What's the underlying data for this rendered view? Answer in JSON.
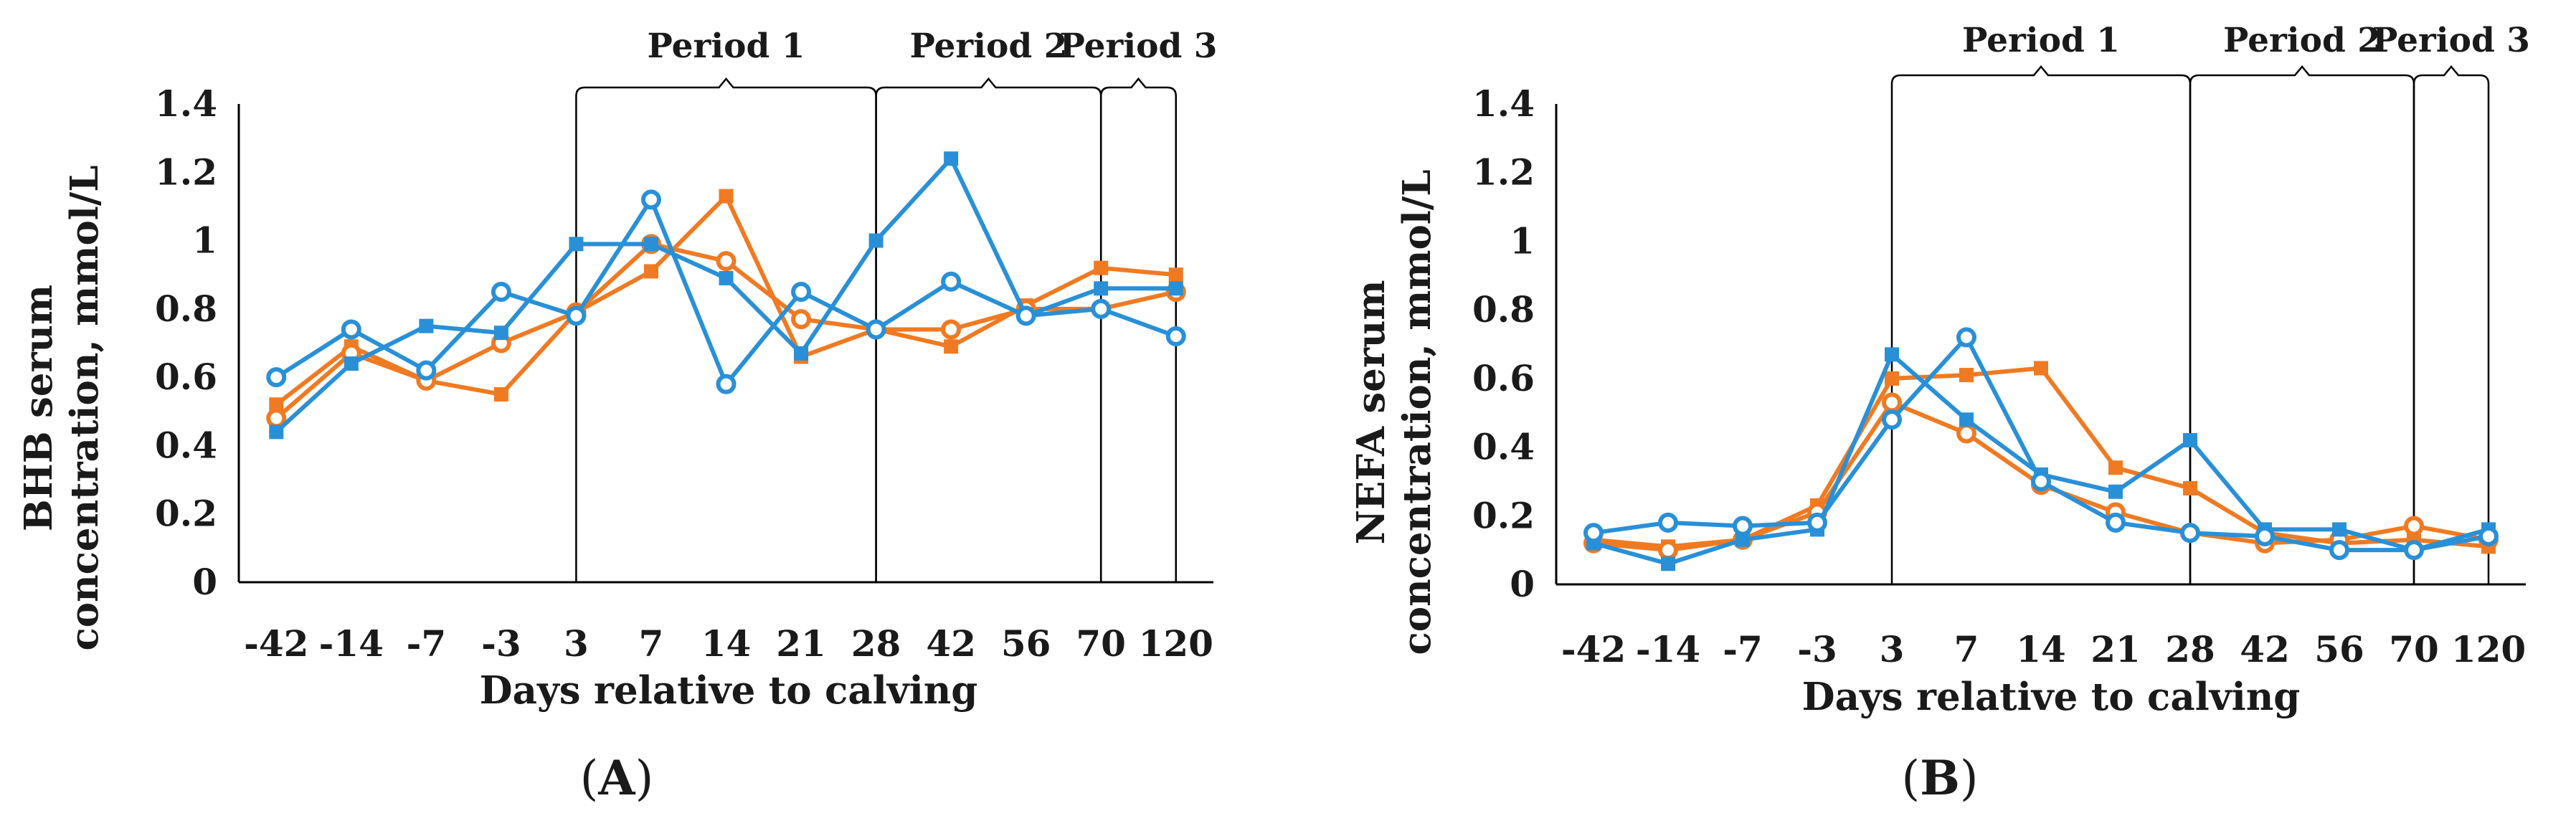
{
  "colors": {
    "orange": "#F07A22",
    "blue": "#2990D7",
    "axis": "#000000"
  },
  "chart_data": [
    {
      "id": "A",
      "type": "line",
      "panel_label": "A",
      "xlabel": "Days relative to calving",
      "ylabel_line1": "BHB serum",
      "ylabel_line2": "concentration, mmol/L",
      "categories": [
        "-42",
        "-14",
        "-7",
        "-3",
        "3",
        "7",
        "14",
        "21",
        "28",
        "42",
        "56",
        "70",
        "120"
      ],
      "ylim": [
        0,
        1.4
      ],
      "yticks": [
        "0",
        "0.2",
        "0.4",
        "0.6",
        "0.8",
        "1",
        "1.2",
        "1.4"
      ],
      "periods": [
        {
          "label": "Period 1",
          "from": "3",
          "to": "28"
        },
        {
          "label": "Period 2",
          "from": "28",
          "to": "70"
        },
        {
          "label": "Period 3",
          "from": "70",
          "to": "120"
        }
      ],
      "series": [
        {
          "name": "orange squares",
          "color": "orange",
          "marker": "square",
          "values": [
            0.52,
            0.69,
            0.59,
            0.55,
            0.79,
            0.91,
            1.13,
            0.66,
            0.74,
            0.69,
            0.81,
            0.92,
            0.9
          ]
        },
        {
          "name": "orange circles",
          "color": "orange",
          "marker": "circle",
          "values": [
            0.48,
            0.67,
            0.59,
            0.7,
            0.79,
            0.99,
            0.94,
            0.77,
            0.74,
            0.74,
            0.8,
            0.8,
            0.85
          ]
        },
        {
          "name": "blue squares",
          "color": "blue",
          "marker": "square",
          "values": [
            0.44,
            0.64,
            0.75,
            0.73,
            0.99,
            0.99,
            0.89,
            0.67,
            1.0,
            1.24,
            0.78,
            0.86,
            0.86
          ]
        },
        {
          "name": "blue circles",
          "color": "blue",
          "marker": "circle",
          "values": [
            0.6,
            0.74,
            0.62,
            0.85,
            0.78,
            1.12,
            0.58,
            0.85,
            0.74,
            0.88,
            0.78,
            0.8,
            0.72
          ]
        }
      ]
    },
    {
      "id": "B",
      "type": "line",
      "panel_label": "B",
      "xlabel": "Days relative to calving",
      "ylabel_line1": "NEFA serum",
      "ylabel_line2": "concentration, mmol/L",
      "categories": [
        "-42",
        "-14",
        "-7",
        "-3",
        "3",
        "7",
        "14",
        "21",
        "28",
        "42",
        "56",
        "70",
        "120"
      ],
      "ylim": [
        0,
        1.4
      ],
      "yticks": [
        "0",
        "0.2",
        "0.4",
        "0.6",
        "0.8",
        "1",
        "1.2",
        "1.4"
      ],
      "periods": [
        {
          "label": "Period 1",
          "from": "3",
          "to": "28"
        },
        {
          "label": "Period 2",
          "from": "28",
          "to": "70"
        },
        {
          "label": "Period 3",
          "from": "70",
          "to": "120"
        }
      ],
      "series": [
        {
          "name": "orange squares",
          "color": "orange",
          "marker": "square",
          "values": [
            0.13,
            0.11,
            0.13,
            0.23,
            0.6,
            0.61,
            0.63,
            0.34,
            0.28,
            0.15,
            0.12,
            0.13,
            0.11
          ]
        },
        {
          "name": "orange circles",
          "color": "orange",
          "marker": "circle",
          "values": [
            0.12,
            0.1,
            0.13,
            0.21,
            0.53,
            0.44,
            0.29,
            0.21,
            0.15,
            0.12,
            0.13,
            0.17,
            0.13
          ]
        },
        {
          "name": "blue squares",
          "color": "blue",
          "marker": "square",
          "values": [
            0.12,
            0.06,
            0.13,
            0.16,
            0.67,
            0.48,
            0.32,
            0.27,
            0.42,
            0.16,
            0.16,
            0.1,
            0.16
          ]
        },
        {
          "name": "blue circles",
          "color": "blue",
          "marker": "circle",
          "values": [
            0.15,
            0.18,
            0.17,
            0.18,
            0.48,
            0.72,
            0.3,
            0.18,
            0.15,
            0.14,
            0.1,
            0.1,
            0.14
          ]
        }
      ]
    }
  ]
}
